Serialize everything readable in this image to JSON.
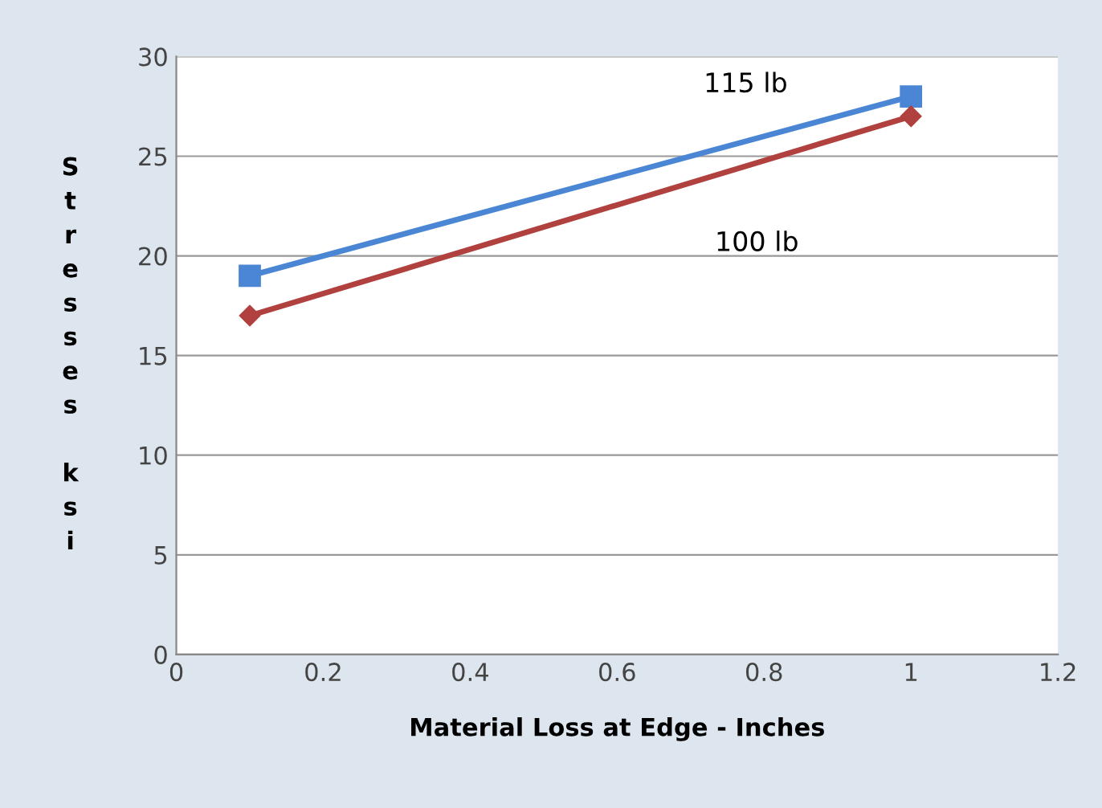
{
  "chart_data": {
    "type": "line",
    "xlabel": "Material Loss at Edge - Inches",
    "ylabel": "Stresses ksi",
    "x": [
      0.1,
      1
    ],
    "series": [
      {
        "name": "115 lb",
        "color": "#4a86d4",
        "values": [
          19,
          28
        ],
        "marker": "square"
      },
      {
        "name": "100 lb",
        "color": "#b0413e",
        "values": [
          17,
          27
        ],
        "marker": "diamond"
      }
    ],
    "xlim": [
      0,
      1.2
    ],
    "xticks": [
      0,
      0.2,
      0.4,
      0.6,
      0.8,
      1,
      1.2
    ],
    "ylim": [
      0,
      30
    ],
    "yticks": [
      0,
      5,
      10,
      15,
      20,
      25,
      30
    ],
    "grid": "y",
    "legend": false
  }
}
